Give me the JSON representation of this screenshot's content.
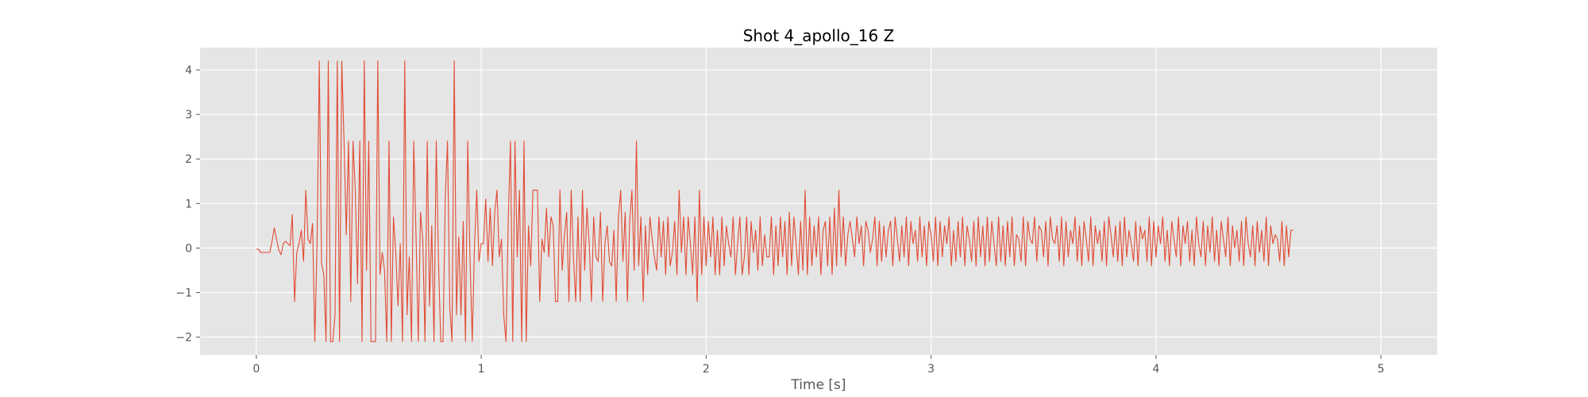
{
  "chart_data": {
    "type": "line",
    "title": "Shot 4_apollo_16 Z",
    "xlabel": "Time [s]",
    "ylabel": "",
    "xlim": [
      -0.25,
      5.25
    ],
    "ylim": [
      -2.4,
      4.5
    ],
    "grid": true,
    "line_color": "#E24A33",
    "background_color": "#E5E5E5",
    "x_ticks": [
      0,
      1,
      2,
      3,
      4,
      5
    ],
    "y_ticks": [
      -2,
      -1,
      0,
      1,
      2,
      3,
      4
    ],
    "x_tick_labels": [
      "0",
      "1",
      "2",
      "3",
      "4",
      "5"
    ],
    "y_tick_labels": [
      "−2",
      "−1",
      "0",
      "1",
      "2",
      "3",
      "4"
    ],
    "series": [
      {
        "x_start": 0,
        "dx": 0.01,
        "values": [
          -0.02,
          -0.03,
          -0.1,
          -0.1,
          -0.1,
          -0.1,
          -0.1,
          0.15,
          0.45,
          0.2,
          -0.05,
          -0.15,
          0.1,
          0.15,
          0.1,
          0.05,
          0.75,
          -1.2,
          -0.1,
          0.1,
          0.4,
          -0.3,
          1.3,
          0.2,
          0.1,
          0.55,
          -2.1,
          0.05,
          4.2,
          -0.35,
          -0.6,
          -2.1,
          4.2,
          -2.1,
          -2.1,
          -1.5,
          4.2,
          -2.1,
          4.2,
          2.4,
          0.3,
          2.4,
          -1.2,
          2.4,
          1.3,
          -0.8,
          2.4,
          -2.1,
          4.2,
          -0.5,
          2.4,
          -2.1,
          -2.1,
          -2.1,
          4.2,
          -0.6,
          -0.1,
          -0.5,
          -2.1,
          2.4,
          -2.1,
          0.7,
          -0.1,
          -1.3,
          0.1,
          -2.1,
          4.2,
          -1.5,
          -0.2,
          -2.1,
          2.4,
          0.3,
          -2.1,
          0.8,
          0.2,
          -2.1,
          2.4,
          -1.3,
          0.5,
          -2.1,
          2.4,
          -0.3,
          -2.1,
          -2.1,
          1.1,
          2.4,
          -1.3,
          -2.1,
          4.2,
          -1.5,
          0.25,
          -1.5,
          0.6,
          -2.1,
          2.4,
          -0.2,
          -2.1,
          0.05,
          1.3,
          -0.3,
          0.1,
          0.1,
          1.1,
          -0.3,
          0.9,
          -0.4,
          0.8,
          1.3,
          -0.2,
          0.2,
          -1.5,
          -2.1,
          0.6,
          2.4,
          -2.1,
          2.4,
          -0.2,
          1.3,
          -2.1,
          2.4,
          -2.1,
          0.5,
          -0.4,
          1.3,
          1.3,
          1.3,
          -1.2,
          0.2,
          -0.1,
          0.9,
          -0.2,
          0.7,
          0.5,
          -1.2,
          -1.2,
          1.3,
          -0.5,
          0.3,
          0.8,
          -1.2,
          1.3,
          -0.2,
          -1.2,
          0.7,
          -1.2,
          1.3,
          -0.5,
          0.9,
          0.1,
          -1.2,
          0.7,
          -0.2,
          -0.3,
          0.8,
          -1.2,
          0.1,
          0.5,
          -0.3,
          -0.4,
          0.4,
          -1.2,
          0.7,
          1.3,
          -0.3,
          0.8,
          -1.2,
          0.6,
          1.3,
          -0.5,
          2.4,
          -0.4,
          0.7,
          -1.2,
          0.5,
          -0.6,
          0.7,
          0.2,
          -0.2,
          -0.5,
          0.7,
          -0.2,
          0.6,
          -0.6,
          0.7,
          -0.4,
          -0.1,
          0.6,
          -0.6,
          1.3,
          -0.1,
          0.7,
          -0.6,
          0.7,
          0.1,
          -0.6,
          0.7,
          -1.2,
          1.3,
          -0.6,
          0.7,
          -0.4,
          0.6,
          -0.2,
          0.7,
          -0.6,
          0.4,
          -0.6,
          0.7,
          -0.4,
          0.5,
          0.1,
          -0.2,
          0.7,
          -0.6,
          0.1,
          0.7,
          -0.6,
          -0.2,
          0.7,
          -0.6,
          0.6,
          -0.1,
          0.4,
          -0.5,
          0.7,
          -0.4,
          0.3,
          -0.2,
          -0.2,
          0.7,
          -0.6,
          0.5,
          -0.4,
          0.7,
          -0.2,
          0.6,
          -0.6,
          0.8,
          -0.4,
          0.7,
          0.1,
          -0.6,
          0.6,
          -0.5,
          1.3,
          -0.6,
          0.7,
          -0.4,
          0.5,
          -0.2,
          0.7,
          -0.6,
          0.4,
          0.6,
          -0.4,
          0.7,
          -0.6,
          0.9,
          -0.4,
          1.3,
          -0.2,
          0.7,
          -0.4,
          0.3,
          0.6,
          0.2,
          -0.2,
          0.7,
          0.1,
          0.5,
          -0.4,
          0.6,
          0.4,
          -0.1,
          0.2,
          0.7,
          -0.4,
          0.6,
          -0.3,
          0.5,
          -0.2,
          0.4,
          0.6,
          -0.4,
          0.7,
          0.2,
          -0.3,
          0.5,
          -0.2,
          0.7,
          -0.4,
          0.6,
          0.1,
          0.4,
          -0.3,
          0.7,
          -0.2,
          0.5,
          -0.4,
          0.6,
          0.3,
          -0.3,
          0.7,
          -0.4,
          0.6,
          -0.2,
          0.5,
          0.1,
          0.7,
          -0.4,
          0.4,
          -0.3,
          0.6,
          -0.2,
          0.7,
          -0.4,
          0.5,
          0.2,
          -0.3,
          0.6,
          -0.4,
          0.7,
          -0.2,
          0.5,
          -0.4,
          0.7,
          -0.3,
          0.6,
          0.1,
          -0.4,
          0.7,
          -0.3,
          0.5,
          -0.4,
          0.6,
          -0.2,
          0.7,
          -0.4,
          0.3,
          0.2,
          -0.3,
          0.7,
          -0.4,
          0.6,
          0.2,
          0.1,
          0.7,
          -0.3,
          0.5,
          0.4,
          -0.2,
          0.6,
          -0.4,
          0.7,
          0.2,
          0.1,
          0.5,
          -0.3,
          0.7,
          -0.4,
          0.6,
          -0.2,
          0.4,
          0.1,
          0.7,
          -0.3,
          0.5,
          -0.4,
          0.6,
          0.2,
          -0.3,
          0.7,
          -0.4,
          0.5,
          0.1,
          0.4,
          -0.3,
          0.6,
          -0.4,
          0.7,
          0.3,
          -0.2,
          0.5,
          -0.3,
          0.6,
          -0.4,
          0.7,
          -0.2,
          0.4,
          0.1,
          -0.3,
          0.6,
          -0.4,
          0.5,
          0.2,
          0.4,
          -0.3,
          0.7,
          -0.4,
          0.6,
          -0.2,
          0.5,
          0.1,
          0.7,
          -0.3,
          0.4,
          -0.4,
          0.6,
          0.2,
          -0.2,
          0.7,
          -0.4,
          0.5,
          0.1,
          0.6,
          -0.3,
          0.4,
          -0.4,
          0.7,
          0.1,
          -0.2,
          0.6,
          -0.4,
          0.5,
          -0.1,
          0.7,
          -0.3,
          0.4,
          -0.4,
          0.6,
          0.2,
          -0.2,
          0.7,
          -0.4,
          0.5,
          0.0,
          0.4,
          -0.3,
          0.6,
          -0.4,
          0.7,
          0.1,
          -0.2,
          0.5,
          -0.4,
          0.6,
          -0.1,
          0.4,
          -0.3,
          0.7,
          -0.4,
          0.5,
          0.1,
          0.3,
          0.2,
          -0.3,
          0.6,
          -0.4,
          0.5,
          -0.2,
          0.4,
          0.4
        ]
      }
    ]
  }
}
